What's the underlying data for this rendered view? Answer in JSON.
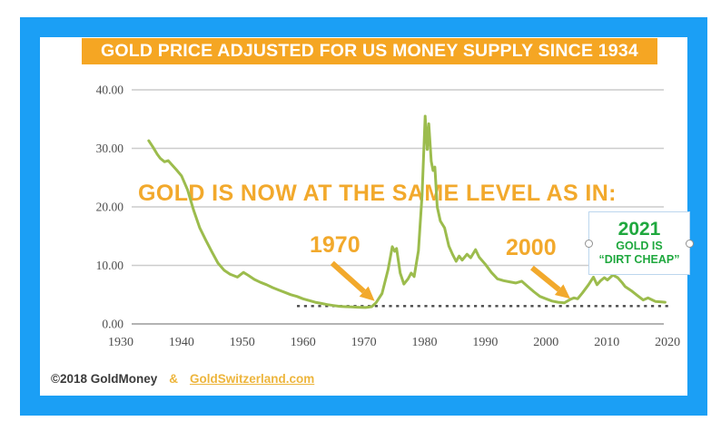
{
  "title": {
    "text": "GOLD PRICE ADJUSTED FOR US MONEY SUPPLY SINCE 1934"
  },
  "annotations": {
    "heading": "GOLD IS NOW AT THE SAME LEVEL AS IN:",
    "label_1970": "1970",
    "label_2000": "2000",
    "box_2021": {
      "year": "2021",
      "line1": "GOLD IS",
      "line2": "“DIRT CHEAP”"
    }
  },
  "footer": {
    "copyright": "©2018 GoldMoney",
    "amp": "&",
    "link": "GoldSwitzerland.com"
  },
  "colors": {
    "frame_blue": "#1B9FF5",
    "banner_orange": "#F5A623",
    "gold_text": "#F2A92C",
    "line_green": "#9CBC4D",
    "green_2021": "#1FA83E",
    "link_gold": "#EDB53C",
    "gridline": "#CCCCCC",
    "zero_line": "#9A9A9A",
    "dashed_line": "#4A4A4A"
  },
  "chart_data": {
    "type": "line",
    "title": "GOLD PRICE ADJUSTED FOR US MONEY SUPPLY SINCE 1934",
    "xlabel": "",
    "ylabel": "",
    "ylim": [
      0,
      40
    ],
    "xlim": [
      1930,
      2020
    ],
    "grid": "horizontal",
    "legend": "none",
    "yticks": [
      {
        "value": 0,
        "label": "0.00"
      },
      {
        "value": 10,
        "label": "10.00"
      },
      {
        "value": 20,
        "label": "20.00"
      },
      {
        "value": 30,
        "label": "30.00"
      },
      {
        "value": 40,
        "label": "40.00"
      }
    ],
    "xticks": [
      {
        "value": 1930,
        "label": "1930"
      },
      {
        "value": 1940,
        "label": "1940"
      },
      {
        "value": 1950,
        "label": "1950"
      },
      {
        "value": 1960,
        "label": "1960"
      },
      {
        "value": 1970,
        "label": "1970"
      },
      {
        "value": 1980,
        "label": "1980"
      },
      {
        "value": 1990,
        "label": "1990"
      },
      {
        "value": 2000,
        "label": "2000"
      },
      {
        "value": 2010,
        "label": "2010"
      },
      {
        "value": 2020,
        "label": "2020"
      }
    ],
    "baseline": {
      "value": 3.05,
      "style": "dashed",
      "x_range": [
        1959,
        2020.3
      ]
    },
    "arrow_color": "#F2A92C",
    "arrows": [
      {
        "label": "1970",
        "from": [
          1964.8,
          10.4
        ],
        "to": [
          1971.8,
          3.9
        ]
      },
      {
        "label": "2000",
        "from": [
          1997.7,
          9.6
        ],
        "to": [
          2004.0,
          4.3
        ]
      }
    ],
    "series": [
      {
        "name": "Gold price adjusted for US money supply",
        "color": "#9CBC4D",
        "points": [
          [
            1934.6,
            31.3
          ],
          [
            1935.3,
            30.2
          ],
          [
            1936,
            29.0
          ],
          [
            1936.5,
            28.3
          ],
          [
            1937.2,
            27.7
          ],
          [
            1937.8,
            27.9
          ],
          [
            1938.5,
            27.1
          ],
          [
            1939.2,
            26.3
          ],
          [
            1940,
            25.3
          ],
          [
            1941,
            22.9
          ],
          [
            1942,
            19.4
          ],
          [
            1943,
            16.4
          ],
          [
            1944,
            14.3
          ],
          [
            1945,
            12.3
          ],
          [
            1946,
            10.4
          ],
          [
            1947,
            9.2
          ],
          [
            1948,
            8.5
          ],
          [
            1949.2,
            8.0
          ],
          [
            1950.2,
            8.8
          ],
          [
            1951,
            8.3
          ],
          [
            1952,
            7.6
          ],
          [
            1953,
            7.1
          ],
          [
            1954,
            6.7
          ],
          [
            1955,
            6.2
          ],
          [
            1956,
            5.8
          ],
          [
            1957,
            5.4
          ],
          [
            1958,
            5.0
          ],
          [
            1959,
            4.7
          ],
          [
            1960,
            4.3
          ],
          [
            1961,
            4.0
          ],
          [
            1962,
            3.7
          ],
          [
            1963,
            3.5
          ],
          [
            1964,
            3.3
          ],
          [
            1965,
            3.15
          ],
          [
            1966,
            3.0
          ],
          [
            1967,
            2.95
          ],
          [
            1968,
            2.9
          ],
          [
            1969,
            2.85
          ],
          [
            1970.3,
            2.8
          ],
          [
            1971.3,
            2.95
          ],
          [
            1972,
            3.6
          ],
          [
            1973,
            5.2
          ],
          [
            1974,
            9.3
          ],
          [
            1974.7,
            13.2
          ],
          [
            1975.1,
            12.4
          ],
          [
            1975.4,
            12.9
          ],
          [
            1976,
            8.7
          ],
          [
            1976.6,
            6.8
          ],
          [
            1977.3,
            7.7
          ],
          [
            1977.8,
            8.7
          ],
          [
            1978.3,
            8.1
          ],
          [
            1979,
            12.5
          ],
          [
            1979.6,
            22.0
          ],
          [
            1980.1,
            35.5
          ],
          [
            1980.45,
            29.8
          ],
          [
            1980.7,
            34.2
          ],
          [
            1981.1,
            27.8
          ],
          [
            1981.4,
            26.2
          ],
          [
            1981.7,
            26.8
          ],
          [
            1982.1,
            20.0
          ],
          [
            1982.6,
            17.6
          ],
          [
            1983.3,
            16.4
          ],
          [
            1984,
            13.3
          ],
          [
            1984.6,
            11.9
          ],
          [
            1985.2,
            10.7
          ],
          [
            1985.7,
            11.6
          ],
          [
            1986.2,
            10.9
          ],
          [
            1987,
            11.9
          ],
          [
            1987.6,
            11.3
          ],
          [
            1988.4,
            12.7
          ],
          [
            1989,
            11.4
          ],
          [
            1990,
            10.2
          ],
          [
            1991,
            8.8
          ],
          [
            1992,
            7.7
          ],
          [
            1993,
            7.4
          ],
          [
            1994,
            7.2
          ],
          [
            1995,
            7.0
          ],
          [
            1996,
            7.3
          ],
          [
            1997,
            6.4
          ],
          [
            1998,
            5.5
          ],
          [
            1999,
            4.7
          ],
          [
            2000,
            4.3
          ],
          [
            2001,
            3.9
          ],
          [
            2002,
            3.7
          ],
          [
            2003,
            3.6
          ],
          [
            2004,
            4.2
          ],
          [
            2004.6,
            4.45
          ],
          [
            2005.2,
            4.3
          ],
          [
            2006,
            5.3
          ],
          [
            2007,
            6.7
          ],
          [
            2007.8,
            8.0
          ],
          [
            2008.4,
            6.7
          ],
          [
            2009,
            7.4
          ],
          [
            2009.6,
            7.9
          ],
          [
            2010.1,
            7.5
          ],
          [
            2011,
            8.35
          ],
          [
            2011.8,
            7.9
          ],
          [
            2012.5,
            7.1
          ],
          [
            2013,
            6.4
          ],
          [
            2014,
            5.7
          ],
          [
            2015,
            4.9
          ],
          [
            2016,
            4.1
          ],
          [
            2016.8,
            4.45
          ],
          [
            2017.5,
            4.1
          ],
          [
            2018,
            3.85
          ],
          [
            2019,
            3.75
          ],
          [
            2019.6,
            3.7
          ]
        ]
      }
    ]
  }
}
